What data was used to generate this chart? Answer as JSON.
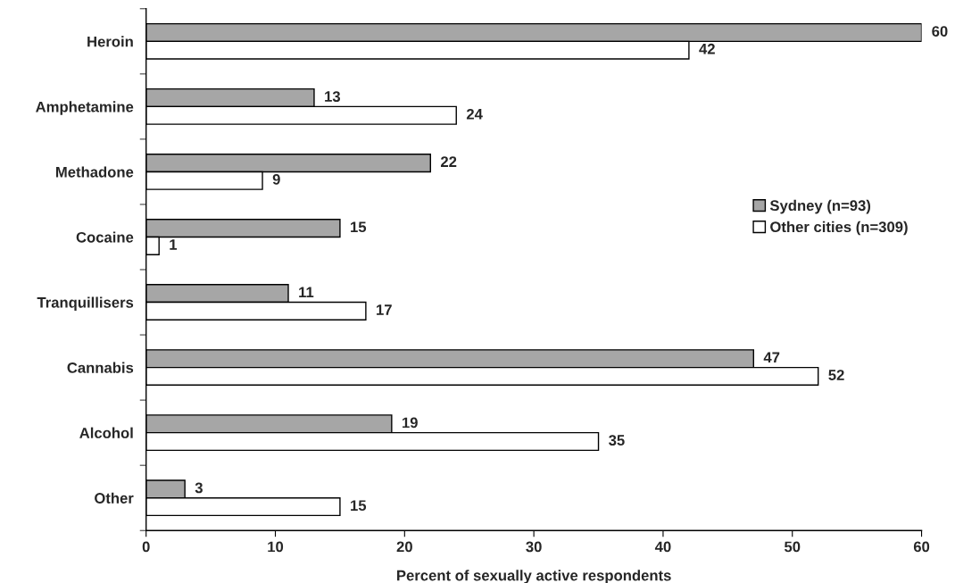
{
  "chart_data": {
    "type": "bar",
    "orientation": "horizontal",
    "categories": [
      "Heroin",
      "Amphetamine",
      "Methadone",
      "Cocaine",
      "Tranquillisers",
      "Cannabis",
      "Alcohol",
      "Other"
    ],
    "series": [
      {
        "name": "Sydney (n=93)",
        "color": "#a6a6a6",
        "values": [
          60,
          13,
          22,
          15,
          11,
          47,
          19,
          3
        ]
      },
      {
        "name": "Other cities (n=309)",
        "color": "#ffffff",
        "values": [
          42,
          24,
          9,
          1,
          17,
          52,
          35,
          15
        ]
      }
    ],
    "xlabel": "Percent of sexually active respondents",
    "xlim": [
      0,
      60
    ],
    "xticks": [
      0,
      10,
      20,
      30,
      40,
      50,
      60
    ],
    "data_labels": true,
    "legend": "right",
    "grid": false
  }
}
